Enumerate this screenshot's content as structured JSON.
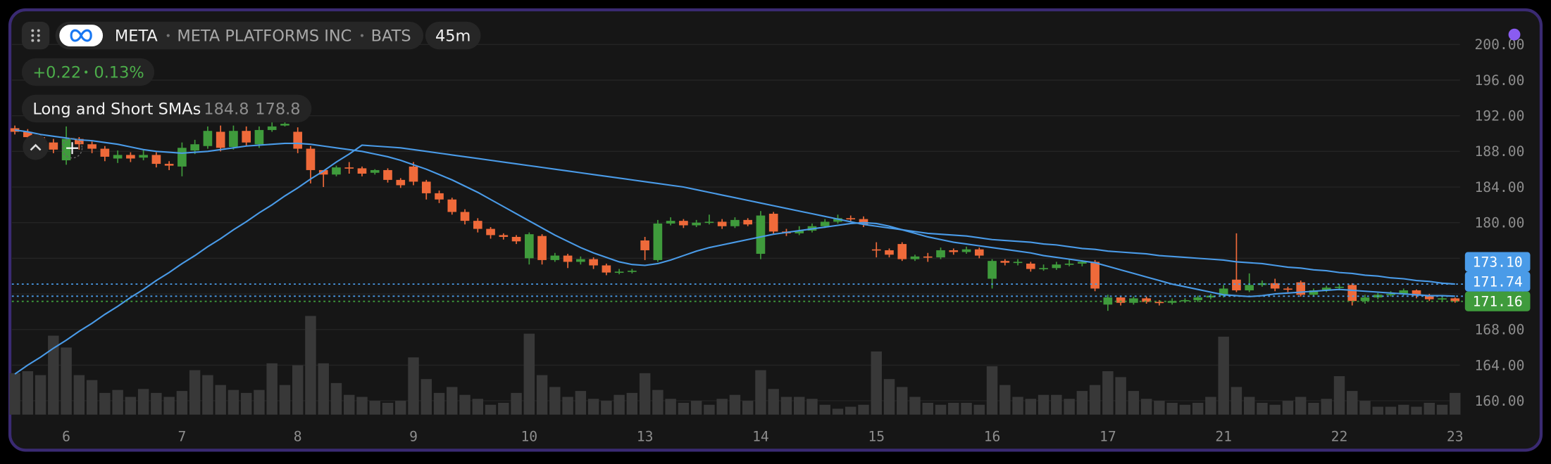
{
  "header": {
    "symbol": "META",
    "company": "META PLATFORMS INC",
    "exchange": "BATS",
    "interval": "45m",
    "change": "+0.22",
    "change_percent": "0.13%"
  },
  "chart_data": {
    "type": "candlestick",
    "up_color": "#3f9b3c",
    "down_color": "#ef6a3a",
    "volume_color": "#383838",
    "ylim": [
      158,
      204
    ],
    "yticks": [
      {
        "value": 160,
        "label": "160.00"
      },
      {
        "value": 164,
        "label": "164.00"
      },
      {
        "value": 168,
        "label": "168.00"
      },
      {
        "value": 172,
        "label": "172.00"
      },
      {
        "value": 176,
        "label": "176.00"
      },
      {
        "value": 180,
        "label": "180.00"
      },
      {
        "value": 184,
        "label": "184.00"
      },
      {
        "value": 188,
        "label": "188.00"
      },
      {
        "value": 192,
        "label": "192.00"
      },
      {
        "value": 196,
        "label": "196.00"
      },
      {
        "value": 200,
        "label": "200.00"
      }
    ],
    "grid": true,
    "categories": [
      null,
      null,
      null,
      null,
      "6",
      null,
      null,
      null,
      null,
      null,
      null,
      null,
      null,
      "7",
      null,
      null,
      null,
      null,
      null,
      null,
      null,
      null,
      "8",
      null,
      null,
      null,
      null,
      null,
      null,
      null,
      null,
      "9",
      null,
      null,
      null,
      null,
      null,
      null,
      null,
      null,
      "10",
      null,
      null,
      null,
      null,
      null,
      null,
      null,
      null,
      "13",
      null,
      null,
      null,
      null,
      null,
      null,
      null,
      null,
      "14",
      null,
      null,
      null,
      null,
      null,
      null,
      null,
      null,
      "15",
      null,
      null,
      null,
      null,
      null,
      null,
      null,
      null,
      "16",
      null,
      null,
      null,
      null,
      null,
      null,
      null,
      null,
      "17",
      null,
      null,
      null,
      null,
      null,
      null,
      null,
      null,
      "21",
      null,
      null,
      null,
      null,
      null,
      null,
      null,
      null,
      "22",
      null,
      null,
      null,
      null,
      null,
      null,
      null,
      null,
      "23"
    ],
    "open": [
      190.6,
      190.2,
      189.6,
      189.0,
      187.0,
      189.4,
      188.8,
      188.3,
      187.2,
      187.6,
      187.3,
      187.6,
      186.6,
      186.3,
      188.1,
      188.6,
      190.2,
      188.5,
      190.3,
      188.8,
      190.4,
      190.9,
      190.2,
      188.3,
      185.9,
      185.4,
      186.2,
      186.1,
      185.6,
      185.9,
      184.8,
      186.3,
      184.6,
      183.3,
      182.6,
      181.2,
      180.2,
      179.3,
      178.6,
      178.4,
      176.0,
      178.5,
      175.8,
      176.3,
      175.6,
      175.9,
      175.2,
      174.4,
      174.5,
      178.0,
      175.8,
      179.9,
      180.2,
      179.7,
      180.0,
      180.1,
      179.6,
      180.3,
      176.5,
      181.0,
      179.0,
      178.8,
      179.1,
      179.6,
      180.1,
      180.5,
      180.4,
      177.0,
      176.9,
      177.6,
      175.9,
      176.2,
      176.1,
      176.9,
      176.7,
      177.0,
      173.7,
      175.7,
      175.5,
      175.4,
      174.8,
      174.9,
      175.3,
      175.4,
      175.6,
      170.8,
      171.6,
      171.0,
      171.5,
      171.1,
      171.0,
      171.2,
      171.3,
      171.6,
      171.8,
      173.6,
      172.4,
      173.0,
      173.2,
      172.6,
      173.3,
      171.9,
      172.4,
      172.7,
      173.0,
      171.2,
      171.6,
      171.9,
      172.0,
      172.4,
      171.8,
      171.4,
      171.5
    ],
    "high": [
      190.9,
      190.5,
      189.9,
      189.4,
      190.8,
      189.6,
      189.1,
      188.6,
      188.1,
      187.9,
      188.2,
      187.9,
      186.9,
      189.0,
      189.3,
      190.8,
      190.9,
      190.9,
      190.8,
      190.8,
      191.3,
      191.3,
      190.7,
      188.6,
      185.9,
      186.4,
      186.8,
      186.3,
      186.0,
      186.1,
      185.0,
      186.8,
      184.8,
      183.6,
      182.8,
      181.5,
      180.5,
      179.5,
      178.8,
      178.6,
      178.9,
      178.7,
      176.6,
      176.5,
      176.2,
      176.1,
      175.4,
      174.8,
      174.8,
      178.4,
      180.3,
      180.6,
      180.4,
      180.3,
      180.9,
      180.4,
      180.6,
      180.5,
      181.3,
      181.2,
      179.3,
      179.6,
      179.9,
      180.4,
      180.9,
      180.8,
      180.7,
      177.8,
      177.1,
      177.8,
      176.4,
      176.6,
      177.2,
      177.1,
      177.3,
      177.2,
      175.9,
      175.9,
      175.9,
      175.6,
      175.3,
      175.6,
      175.9,
      175.8,
      175.8,
      171.9,
      171.8,
      171.7,
      171.7,
      171.3,
      171.5,
      171.5,
      171.8,
      172.0,
      173.0,
      178.8,
      174.3,
      173.5,
      173.7,
      172.8,
      173.5,
      172.6,
      172.9,
      173.1,
      173.2,
      171.9,
      172.1,
      172.3,
      172.6,
      172.5,
      172.0,
      171.7,
      171.6
    ],
    "low": [
      189.9,
      189.3,
      188.7,
      187.8,
      186.5,
      188.2,
      187.8,
      186.9,
      186.7,
      186.8,
      187.0,
      186.2,
      185.9,
      185.2,
      187.7,
      188.3,
      188.0,
      188.2,
      188.6,
      188.4,
      190.2,
      190.8,
      187.8,
      184.4,
      184.0,
      185.2,
      185.5,
      185.2,
      185.4,
      184.5,
      183.9,
      184.2,
      182.6,
      182.2,
      180.9,
      179.8,
      178.9,
      178.2,
      178.1,
      177.6,
      175.3,
      175.3,
      175.6,
      174.9,
      175.3,
      174.8,
      174.1,
      174.2,
      174.3,
      175.8,
      175.6,
      179.7,
      179.4,
      179.5,
      179.8,
      179.3,
      179.4,
      179.6,
      175.9,
      178.7,
      178.5,
      178.6,
      178.9,
      179.4,
      179.9,
      180.1,
      179.5,
      176.1,
      176.1,
      175.7,
      175.7,
      175.6,
      175.9,
      176.4,
      176.5,
      176.0,
      172.6,
      175.2,
      175.2,
      174.5,
      174.6,
      174.7,
      175.1,
      175.1,
      172.3,
      170.1,
      170.7,
      170.8,
      170.9,
      170.7,
      170.8,
      171.0,
      171.1,
      171.4,
      171.6,
      172.2,
      172.2,
      172.8,
      172.3,
      172.2,
      171.7,
      171.7,
      172.2,
      172.4,
      170.7,
      170.9,
      171.4,
      171.7,
      171.8,
      171.5,
      171.2,
      171.2,
      171.0
    ],
    "close": [
      190.2,
      189.6,
      189.0,
      188.2,
      189.4,
      188.8,
      188.3,
      187.4,
      187.6,
      187.2,
      187.6,
      186.6,
      186.4,
      188.4,
      188.8,
      190.3,
      188.4,
      190.3,
      189.0,
      190.4,
      190.8,
      191.1,
      188.3,
      185.9,
      185.4,
      186.2,
      186.1,
      185.5,
      185.9,
      184.8,
      184.2,
      184.6,
      183.3,
      182.6,
      181.2,
      180.2,
      179.3,
      178.6,
      178.4,
      177.9,
      178.7,
      175.8,
      176.3,
      175.6,
      175.9,
      175.2,
      174.4,
      174.5,
      174.6,
      176.9,
      179.9,
      180.2,
      179.7,
      180.0,
      180.1,
      179.6,
      180.3,
      179.8,
      180.8,
      179.0,
      178.8,
      179.1,
      179.6,
      180.1,
      180.5,
      180.4,
      179.8,
      176.9,
      176.4,
      175.9,
      176.2,
      176.1,
      176.9,
      176.7,
      177.0,
      176.3,
      175.7,
      175.5,
      175.6,
      174.8,
      174.9,
      175.3,
      175.4,
      175.6,
      172.6,
      171.6,
      171.0,
      171.5,
      171.1,
      171.0,
      171.2,
      171.3,
      171.6,
      171.8,
      172.6,
      172.4,
      173.0,
      173.2,
      172.6,
      172.5,
      171.9,
      172.4,
      172.7,
      172.8,
      171.2,
      171.6,
      171.9,
      172.0,
      172.4,
      171.8,
      171.4,
      171.5,
      171.16
    ],
    "volume": [
      42,
      44,
      40,
      80,
      68,
      40,
      35,
      22,
      25,
      18,
      26,
      22,
      18,
      24,
      45,
      40,
      30,
      25,
      22,
      25,
      52,
      30,
      50,
      100,
      52,
      32,
      20,
      18,
      14,
      12,
      14,
      58,
      36,
      22,
      28,
      20,
      16,
      10,
      12,
      22,
      82,
      40,
      28,
      18,
      24,
      16,
      14,
      20,
      22,
      42,
      25,
      16,
      12,
      14,
      10,
      16,
      20,
      14,
      45,
      26,
      18,
      18,
      16,
      10,
      6,
      8,
      10,
      64,
      36,
      28,
      18,
      12,
      10,
      12,
      12,
      10,
      49,
      30,
      18,
      16,
      20,
      20,
      16,
      24,
      30,
      44,
      38,
      24,
      16,
      14,
      12,
      10,
      12,
      18,
      79,
      28,
      18,
      12,
      10,
      14,
      18,
      12,
      16,
      39,
      24,
      14,
      8,
      8,
      10,
      8,
      12,
      10,
      22
    ],
    "indicator": {
      "name": "Long and Short SMAs",
      "values": [
        184.8,
        178.8
      ]
    },
    "lines": [
      {
        "color": "#4a9be8",
        "values": [
          190.4,
          190.2,
          189.9,
          189.7,
          189.5,
          189.3,
          189.2,
          189.0,
          188.8,
          188.5,
          188.2,
          188.0,
          187.9,
          187.8,
          187.9,
          188.0,
          188.2,
          188.4,
          188.6,
          188.7,
          188.8,
          188.9,
          188.9,
          188.8,
          188.6,
          188.4,
          188.2,
          188.0,
          187.7,
          187.4,
          187.0,
          186.5,
          186.0,
          185.4,
          184.8,
          184.1,
          183.4,
          182.6,
          181.8,
          181.0,
          180.2,
          179.4,
          178.6,
          177.9,
          177.2,
          176.6,
          176.1,
          175.6,
          175.3,
          175.2,
          175.4,
          175.8,
          176.3,
          176.8,
          177.2,
          177.5,
          177.8,
          178.1,
          178.4,
          178.7,
          178.9,
          179.1,
          179.3,
          179.5,
          179.7,
          179.9,
          180.0,
          179.9,
          179.6,
          179.2,
          178.8,
          178.4,
          178.1,
          177.8,
          177.6,
          177.4,
          177.2,
          177.0,
          176.8,
          176.6,
          176.3,
          176.1,
          175.9,
          175.7,
          175.5,
          175.1,
          174.7,
          174.3,
          173.9,
          173.5,
          173.1,
          172.8,
          172.5,
          172.2,
          171.9,
          171.8,
          171.7,
          171.8,
          172.0,
          172.1,
          172.2,
          172.3,
          172.4,
          172.5,
          172.4,
          172.3,
          172.2,
          172.1,
          172.0,
          171.9,
          171.8,
          171.8,
          171.74
        ]
      },
      {
        "color": "#4a9be8",
        "values": [
          163.0,
          164.0,
          164.9,
          165.9,
          166.8,
          167.8,
          168.7,
          169.7,
          170.6,
          171.6,
          172.5,
          173.5,
          174.4,
          175.4,
          176.3,
          177.3,
          178.2,
          179.2,
          180.1,
          181.1,
          182.0,
          183.0,
          183.9,
          184.9,
          185.8,
          186.8,
          187.7,
          188.7,
          188.6,
          188.5,
          188.4,
          188.2,
          188.0,
          187.8,
          187.6,
          187.4,
          187.2,
          187.0,
          186.8,
          186.6,
          186.4,
          186.2,
          186.0,
          185.8,
          185.6,
          185.4,
          185.2,
          185.0,
          184.8,
          184.6,
          184.4,
          184.2,
          184.0,
          183.7,
          183.4,
          183.1,
          182.8,
          182.5,
          182.2,
          181.9,
          181.6,
          181.3,
          181.0,
          180.7,
          180.4,
          180.1,
          179.8,
          179.6,
          179.4,
          179.2,
          179.0,
          178.8,
          178.7,
          178.6,
          178.5,
          178.3,
          178.1,
          178.0,
          177.9,
          177.8,
          177.6,
          177.5,
          177.3,
          177.1,
          177.0,
          176.8,
          176.7,
          176.6,
          176.5,
          176.3,
          176.2,
          176.1,
          176.0,
          175.9,
          175.8,
          175.6,
          175.5,
          175.4,
          175.2,
          175.0,
          174.9,
          174.7,
          174.6,
          174.4,
          174.3,
          174.1,
          174.0,
          173.8,
          173.7,
          173.5,
          173.4,
          173.2,
          173.1
        ]
      }
    ],
    "price_tags": [
      {
        "value": 173.1,
        "label": "173.10",
        "color": "#4a9be8"
      },
      {
        "value": 171.74,
        "color": "#4a9be8"
      },
      {
        "value": 171.16,
        "color": "#3f9b3c"
      }
    ]
  }
}
